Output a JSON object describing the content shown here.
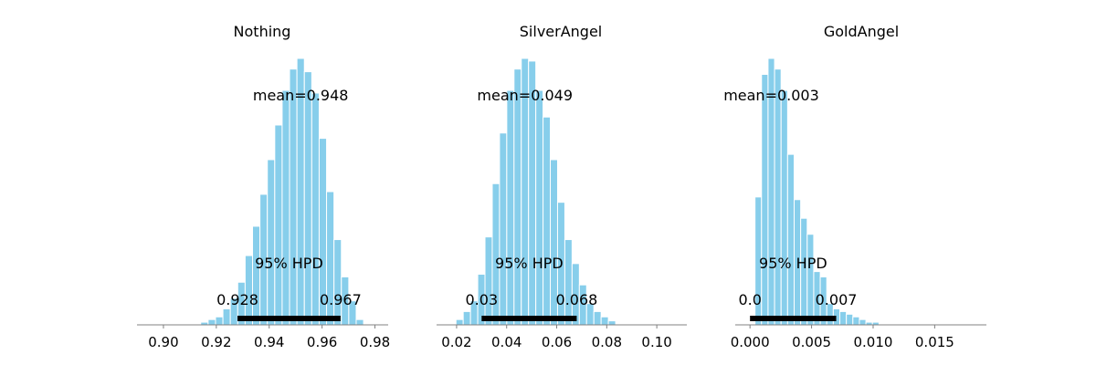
{
  "chart_data": [
    {
      "type": "bar",
      "title": "Nothing",
      "xlim": [
        0.89,
        0.985
      ],
      "xticks": [
        0.9,
        0.92,
        0.94,
        0.96,
        0.98
      ],
      "xtick_labels": [
        "0.90",
        "0.92",
        "0.94",
        "0.96",
        "0.98"
      ],
      "bin_width": 0.0028,
      "bins": [
        {
          "x": 0.9155,
          "h": 0.01
        },
        {
          "x": 0.9183,
          "h": 0.02
        },
        {
          "x": 0.9211,
          "h": 0.03
        },
        {
          "x": 0.9239,
          "h": 0.06
        },
        {
          "x": 0.9267,
          "h": 0.1
        },
        {
          "x": 0.9295,
          "h": 0.16
        },
        {
          "x": 0.9323,
          "h": 0.26
        },
        {
          "x": 0.9351,
          "h": 0.37
        },
        {
          "x": 0.9379,
          "h": 0.49
        },
        {
          "x": 0.9407,
          "h": 0.62
        },
        {
          "x": 0.9435,
          "h": 0.75
        },
        {
          "x": 0.9463,
          "h": 0.88
        },
        {
          "x": 0.9491,
          "h": 0.96
        },
        {
          "x": 0.9519,
          "h": 1.0
        },
        {
          "x": 0.9547,
          "h": 0.95
        },
        {
          "x": 0.9575,
          "h": 0.87
        },
        {
          "x": 0.9603,
          "h": 0.7
        },
        {
          "x": 0.9631,
          "h": 0.5
        },
        {
          "x": 0.9659,
          "h": 0.32
        },
        {
          "x": 0.9687,
          "h": 0.18
        },
        {
          "x": 0.9715,
          "h": 0.09
        },
        {
          "x": 0.9743,
          "h": 0.02
        }
      ],
      "mean_label": "mean=0.948",
      "hpd_label": "95% HPD",
      "hpd": [
        0.928,
        0.967
      ],
      "hpd_low_label": "0.928",
      "hpd_high_label": "0.967"
    },
    {
      "type": "bar",
      "title": "SilverAngel",
      "xlim": [
        0.012,
        0.112
      ],
      "xticks": [
        0.02,
        0.04,
        0.06,
        0.08,
        0.1
      ],
      "xtick_labels": [
        "0.02",
        "0.04",
        "0.06",
        "0.08",
        "0.10"
      ],
      "bin_width": 0.0029,
      "bins": [
        {
          "x": 0.0212,
          "h": 0.02
        },
        {
          "x": 0.0241,
          "h": 0.05
        },
        {
          "x": 0.027,
          "h": 0.09
        },
        {
          "x": 0.0299,
          "h": 0.19
        },
        {
          "x": 0.0328,
          "h": 0.33
        },
        {
          "x": 0.0357,
          "h": 0.53
        },
        {
          "x": 0.0386,
          "h": 0.72
        },
        {
          "x": 0.0415,
          "h": 0.88
        },
        {
          "x": 0.0444,
          "h": 0.96
        },
        {
          "x": 0.0473,
          "h": 1.0
        },
        {
          "x": 0.0502,
          "h": 0.99
        },
        {
          "x": 0.0531,
          "h": 0.88
        },
        {
          "x": 0.056,
          "h": 0.78
        },
        {
          "x": 0.0589,
          "h": 0.62
        },
        {
          "x": 0.0618,
          "h": 0.46
        },
        {
          "x": 0.0647,
          "h": 0.32
        },
        {
          "x": 0.0676,
          "h": 0.23
        },
        {
          "x": 0.0705,
          "h": 0.15
        },
        {
          "x": 0.0734,
          "h": 0.08
        },
        {
          "x": 0.0763,
          "h": 0.05
        },
        {
          "x": 0.0792,
          "h": 0.03
        },
        {
          "x": 0.0821,
          "h": 0.015
        }
      ],
      "mean_label": "mean=0.049",
      "hpd_label": "95% HPD",
      "hpd": [
        0.03,
        0.068
      ],
      "hpd_low_label": "0.03",
      "hpd_high_label": "0.068"
    },
    {
      "type": "bar",
      "title": "GoldAngel",
      "xlim": [
        -0.0012,
        0.0192
      ],
      "xticks": [
        0.0,
        0.005,
        0.01,
        0.015
      ],
      "xtick_labels": [
        "0.000",
        "0.005",
        "0.010",
        "0.015"
      ],
      "bin_width": 0.00053,
      "bins": [
        {
          "x": 0.00067,
          "h": 0.48
        },
        {
          "x": 0.0012,
          "h": 0.94
        },
        {
          "x": 0.00173,
          "h": 1.0
        },
        {
          "x": 0.00226,
          "h": 0.96
        },
        {
          "x": 0.00279,
          "h": 0.88
        },
        {
          "x": 0.00332,
          "h": 0.64
        },
        {
          "x": 0.00385,
          "h": 0.47
        },
        {
          "x": 0.00438,
          "h": 0.4
        },
        {
          "x": 0.00491,
          "h": 0.34
        },
        {
          "x": 0.00544,
          "h": 0.2
        },
        {
          "x": 0.00597,
          "h": 0.18
        },
        {
          "x": 0.0065,
          "h": 0.08
        },
        {
          "x": 0.00703,
          "h": 0.06
        },
        {
          "x": 0.00756,
          "h": 0.05
        },
        {
          "x": 0.00809,
          "h": 0.04
        },
        {
          "x": 0.00862,
          "h": 0.03
        },
        {
          "x": 0.00915,
          "h": 0.02
        },
        {
          "x": 0.00968,
          "h": 0.01
        },
        {
          "x": 0.01021,
          "h": 0.01
        }
      ],
      "mean_label": "mean=0.003",
      "hpd_label": "95% HPD",
      "hpd": [
        0.0,
        0.007
      ],
      "hpd_low_label": "0.0",
      "hpd_high_label": "0.007"
    }
  ],
  "colors": {
    "bar": "#87ceeb",
    "bar_edge": "#ffffff",
    "hpd_line": "#000000",
    "axis": "#808080"
  }
}
